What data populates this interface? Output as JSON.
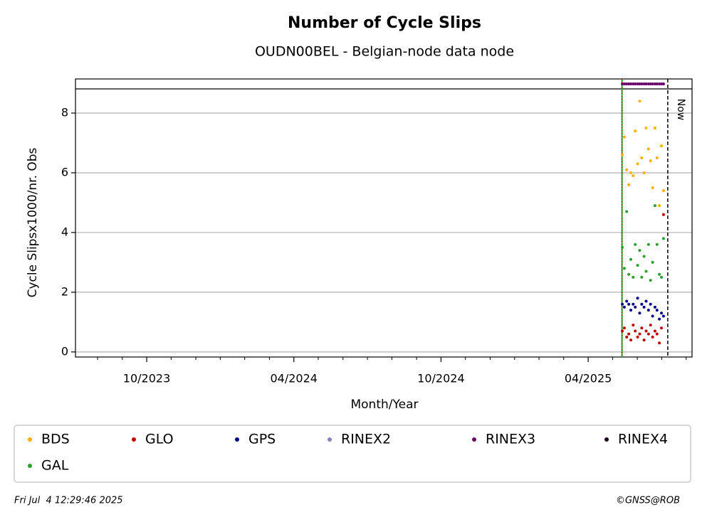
{
  "chart_data": {
    "type": "scatter",
    "title": "Number of Cycle Slips",
    "subtitle": "OUDN00BEL - Belgian-node data node",
    "x_label": "Month/Year",
    "y_label": "Cycle Slipsx1000/nr. Obs",
    "xlim": [
      2023.508,
      2025.603
    ],
    "xticks": [
      {
        "value": 2023.75,
        "label": "10/2023"
      },
      {
        "value": 2024.25,
        "label": "04/2024"
      },
      {
        "value": 2024.75,
        "label": "10/2024"
      },
      {
        "value": 2025.25,
        "label": "04/2025"
      }
    ],
    "xminorticks": [
      2023.583,
      2023.667,
      2023.833,
      2023.917,
      2024.0,
      2024.083,
      2024.167,
      2024.333,
      2024.417,
      2024.5,
      2024.583,
      2024.667,
      2024.833,
      2024.917,
      2025.0,
      2025.083,
      2025.167,
      2025.333,
      2025.417,
      2025.5,
      2025.583
    ],
    "ylim": [
      -0.17,
      8.81
    ],
    "yticks": [
      0,
      2,
      4,
      6,
      8
    ],
    "grid": true,
    "start_line": {
      "x": 2025.365,
      "color": "#2ca02c",
      "dot_color": "#c00000"
    },
    "now_line": {
      "x": 2025.5205,
      "label": "Now"
    },
    "x": [
      2025.366,
      2025.373,
      2025.381,
      2025.388,
      2025.395,
      2025.403,
      2025.41,
      2025.418,
      2025.425,
      2025.432,
      2025.44,
      2025.447,
      2025.455,
      2025.462,
      2025.469,
      2025.477,
      2025.484,
      2025.492,
      2025.499,
      2025.506
    ],
    "series": [
      {
        "name": "BDS",
        "color": "#ffb000",
        "values": [
          6.6,
          7.2,
          6.1,
          5.6,
          6.0,
          5.9,
          7.4,
          6.3,
          8.4,
          6.5,
          6.0,
          7.5,
          6.8,
          6.4,
          5.5,
          7.5,
          6.5,
          4.9,
          6.9,
          5.4
        ]
      },
      {
        "name": "GLO",
        "color": "#c00000",
        "values": [
          0.7,
          0.8,
          0.5,
          0.6,
          0.4,
          0.9,
          0.7,
          0.5,
          0.6,
          0.8,
          0.4,
          0.7,
          0.6,
          0.9,
          0.5,
          0.7,
          0.6,
          0.3,
          0.8,
          4.6
        ]
      },
      {
        "name": "GPS",
        "color": "#00008b",
        "values": [
          1.6,
          1.5,
          1.7,
          1.6,
          1.4,
          1.6,
          1.5,
          1.8,
          1.3,
          1.6,
          1.5,
          1.7,
          1.4,
          1.6,
          1.2,
          1.5,
          1.4,
          1.1,
          1.3,
          1.2
        ]
      },
      {
        "name": "RINEX2",
        "color": "#8c7fc0",
        "axis": "strip",
        "values": [
          null,
          null,
          null,
          null,
          null,
          null,
          null,
          null,
          null,
          null,
          null,
          null,
          null,
          null,
          null,
          null,
          null,
          null,
          null,
          null
        ]
      },
      {
        "name": "RINEX3",
        "color": "#660066",
        "axis": "strip",
        "values": [
          1,
          1,
          1,
          1,
          1,
          1,
          1,
          1,
          1,
          1,
          1,
          1,
          1,
          1,
          1,
          1,
          1,
          1,
          1,
          1
        ]
      },
      {
        "name": "RINEX4",
        "color": "#1a0020",
        "axis": "strip",
        "values": [
          null,
          null,
          null,
          null,
          null,
          null,
          null,
          null,
          null,
          null,
          null,
          null,
          null,
          null,
          null,
          null,
          null,
          null,
          null,
          null
        ]
      },
      {
        "name": "GAL",
        "color": "#2ca02c",
        "values": [
          3.5,
          2.8,
          4.7,
          2.6,
          3.1,
          2.5,
          3.6,
          2.9,
          3.4,
          2.5,
          3.2,
          2.7,
          3.6,
          2.4,
          3.0,
          4.9,
          3.6,
          2.6,
          2.5,
          3.8
        ]
      }
    ],
    "footer_left": "Fri Jul  4 12:29:46 2025",
    "footer_right": "©GNSS@ROB"
  }
}
